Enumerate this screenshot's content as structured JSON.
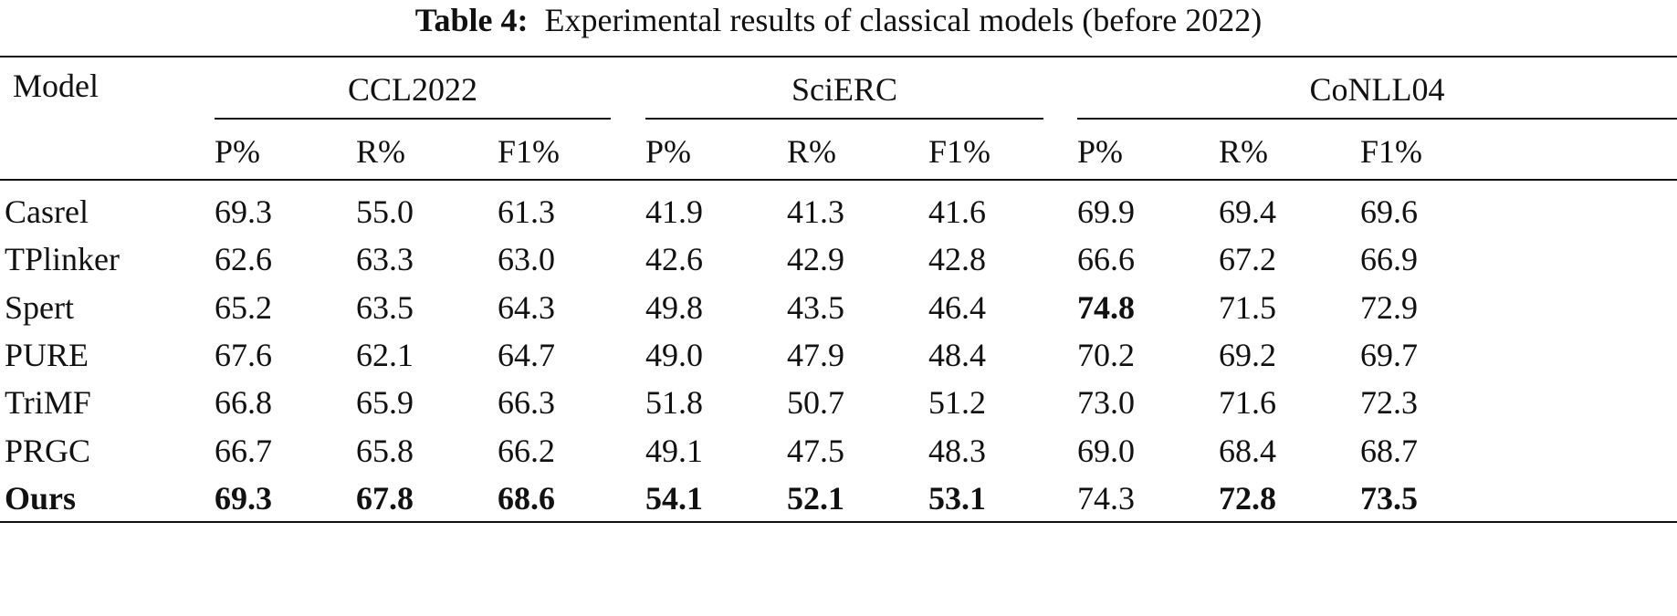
{
  "title": {
    "label": "Table 4:",
    "text": "Experimental results of classical models (before 2022)"
  },
  "table": {
    "model_header": "Model",
    "groups": [
      "CCL2022",
      "SciERC",
      "CoNLL04"
    ],
    "subheaders": [
      "P%",
      "R%",
      "F1%",
      "P%",
      "R%",
      "F1%",
      "P%",
      "R%",
      "F1%"
    ],
    "rows": [
      {
        "cells": [
          "Casrel",
          "69.3",
          "55.0",
          "61.3",
          "41.9",
          "41.3",
          "41.6",
          "69.9",
          "69.4",
          "69.6"
        ],
        "bold": []
      },
      {
        "cells": [
          "TPlinker",
          "62.6",
          "63.3",
          "63.0",
          "42.6",
          "42.9",
          "42.8",
          "66.6",
          "67.2",
          "66.9"
        ],
        "bold": []
      },
      {
        "cells": [
          "Spert",
          "65.2",
          "63.5",
          "64.3",
          "49.8",
          "43.5",
          "46.4",
          "74.8",
          "71.5",
          "72.9"
        ],
        "bold": [
          7
        ]
      },
      {
        "cells": [
          "PURE",
          "67.6",
          "62.1",
          "64.7",
          "49.0",
          "47.9",
          "48.4",
          "70.2",
          "69.2",
          "69.7"
        ],
        "bold": []
      },
      {
        "cells": [
          "TriMF",
          "66.8",
          "65.9",
          "66.3",
          "51.8",
          "50.7",
          "51.2",
          "73.0",
          "71.6",
          "72.3"
        ],
        "bold": []
      },
      {
        "cells": [
          "PRGC",
          "66.7",
          "65.8",
          "66.2",
          "49.1",
          "47.5",
          "48.3",
          "69.0",
          "68.4",
          "68.7"
        ],
        "bold": []
      },
      {
        "cells": [
          "Ours",
          "69.3",
          "67.8",
          "68.6",
          "54.1",
          "52.1",
          "53.1",
          "74.3",
          "72.8",
          "73.5"
        ],
        "bold": [
          0,
          1,
          2,
          3,
          4,
          5,
          6,
          8,
          9
        ]
      }
    ]
  }
}
